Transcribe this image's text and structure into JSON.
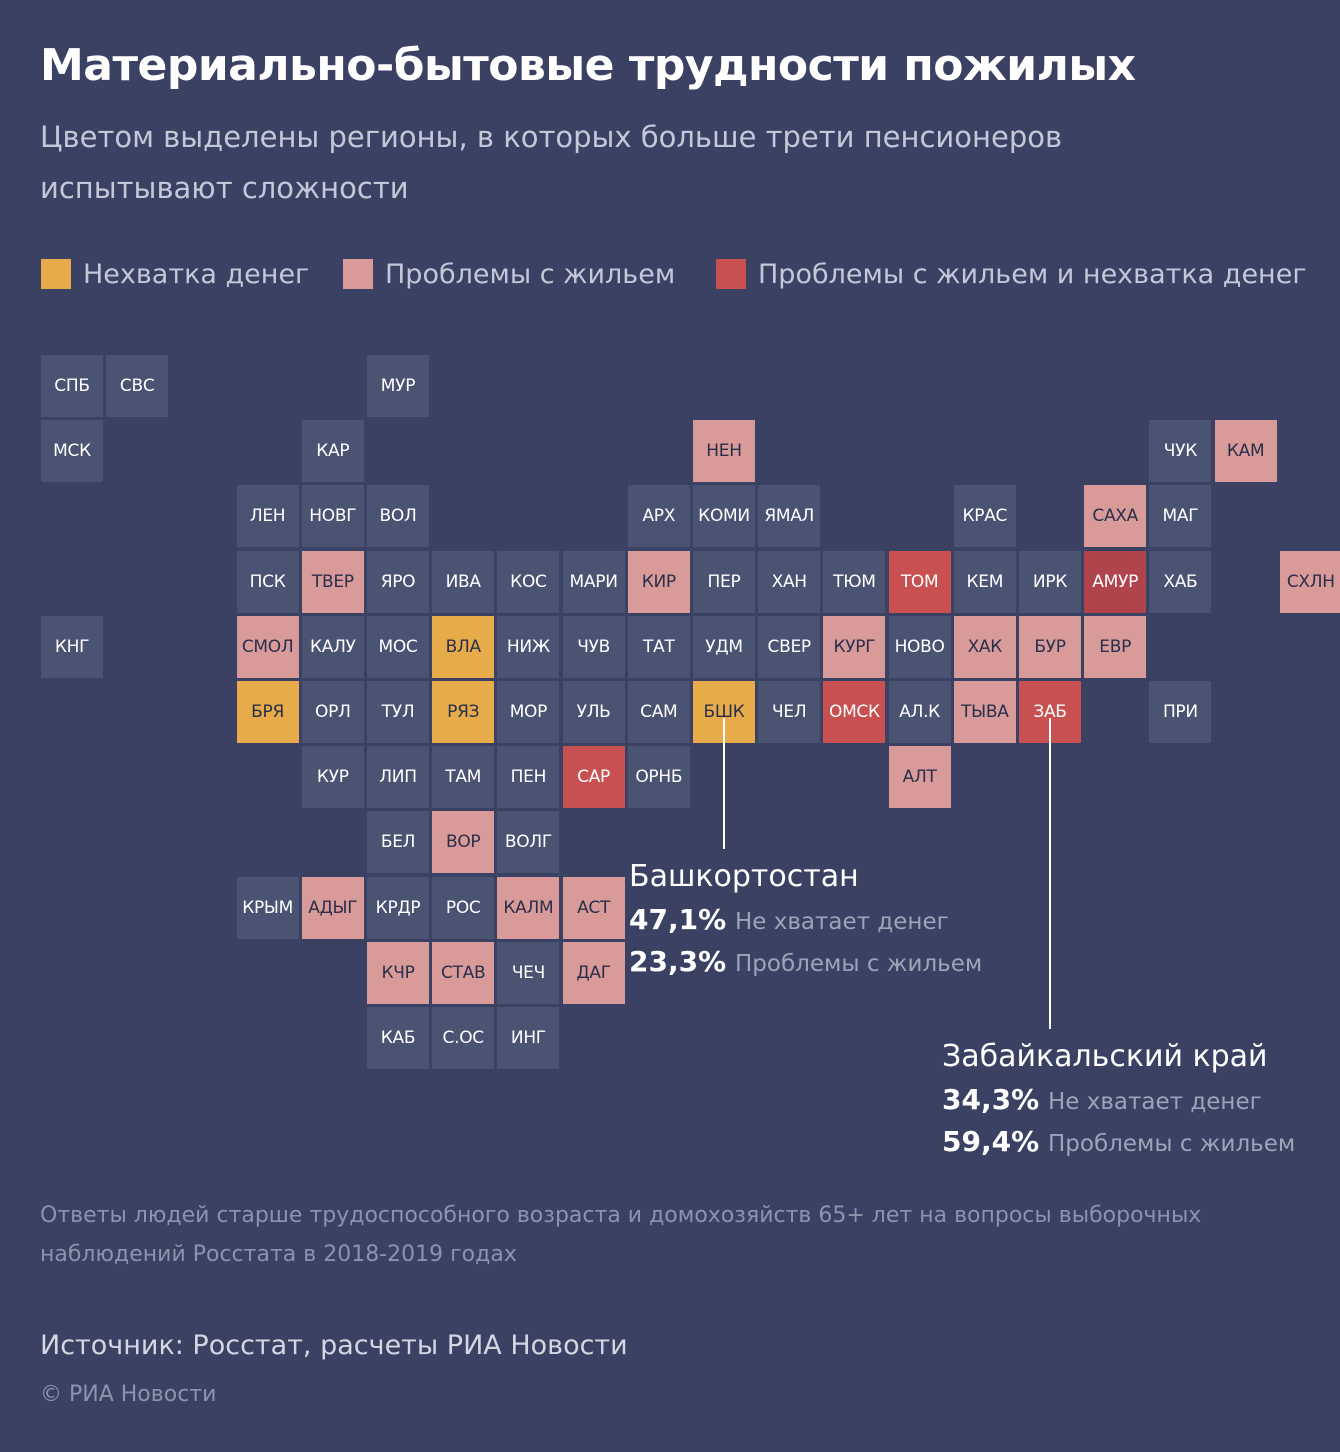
{
  "title": "Материально-бытовые трудности пожилых",
  "subtitle": "Цветом выделены регионы, в которых больше трети пенсионеров испытывают сложности",
  "colors": {
    "background": "#3a4162",
    "default": "#4b5373",
    "money": "#e8ab4a",
    "housing": "#d99a9a",
    "both": "#c85050",
    "both_dark": "#b0444d"
  },
  "legend": [
    {
      "label": "Нехватка денег",
      "category": "money"
    },
    {
      "label": "Проблемы с жильем",
      "category": "housing"
    },
    {
      "label": "Проблемы с жильем и нехватка денег",
      "category": "both"
    }
  ],
  "chart_data": {
    "type": "tile-map",
    "regions": [
      {
        "code": "СПБ",
        "row": 0,
        "col": 0,
        "category": "none"
      },
      {
        "code": "СВС",
        "row": 0,
        "col": 1,
        "category": "none"
      },
      {
        "code": "МУР",
        "row": 0,
        "col": 5,
        "category": "none"
      },
      {
        "code": "МСК",
        "row": 1,
        "col": 0,
        "category": "none"
      },
      {
        "code": "КАР",
        "row": 1,
        "col": 4,
        "category": "none"
      },
      {
        "code": "НЕН",
        "row": 1,
        "col": 10,
        "category": "housing"
      },
      {
        "code": "ЧУК",
        "row": 1,
        "col": 17,
        "category": "none"
      },
      {
        "code": "КАМ",
        "row": 1,
        "col": 18,
        "category": "housing"
      },
      {
        "code": "ЛЕН",
        "row": 2,
        "col": 3,
        "category": "none"
      },
      {
        "code": "НОВГ",
        "row": 2,
        "col": 4,
        "category": "none"
      },
      {
        "code": "ВОЛ",
        "row": 2,
        "col": 5,
        "category": "none"
      },
      {
        "code": "АРХ",
        "row": 2,
        "col": 9,
        "category": "none"
      },
      {
        "code": "КОМИ",
        "row": 2,
        "col": 10,
        "category": "none"
      },
      {
        "code": "ЯМАЛ",
        "row": 2,
        "col": 11,
        "category": "none"
      },
      {
        "code": "КРАС",
        "row": 2,
        "col": 14,
        "category": "none"
      },
      {
        "code": "САХА",
        "row": 2,
        "col": 16,
        "category": "housing"
      },
      {
        "code": "МАГ",
        "row": 2,
        "col": 17,
        "category": "none"
      },
      {
        "code": "ПСК",
        "row": 3,
        "col": 3,
        "category": "none"
      },
      {
        "code": "ТВЕР",
        "row": 3,
        "col": 4,
        "category": "housing"
      },
      {
        "code": "ЯРО",
        "row": 3,
        "col": 5,
        "category": "none"
      },
      {
        "code": "ИВА",
        "row": 3,
        "col": 6,
        "category": "none"
      },
      {
        "code": "КОС",
        "row": 3,
        "col": 7,
        "category": "none"
      },
      {
        "code": "МАРИ",
        "row": 3,
        "col": 8,
        "category": "none"
      },
      {
        "code": "КИР",
        "row": 3,
        "col": 9,
        "category": "housing"
      },
      {
        "code": "ПЕР",
        "row": 3,
        "col": 10,
        "category": "none"
      },
      {
        "code": "ХАН",
        "row": 3,
        "col": 11,
        "category": "none"
      },
      {
        "code": "ТЮМ",
        "row": 3,
        "col": 12,
        "category": "none"
      },
      {
        "code": "ТОМ",
        "row": 3,
        "col": 13,
        "category": "both"
      },
      {
        "code": "КЕМ",
        "row": 3,
        "col": 14,
        "category": "none"
      },
      {
        "code": "ИРК",
        "row": 3,
        "col": 15,
        "category": "none"
      },
      {
        "code": "АМУР",
        "row": 3,
        "col": 16,
        "category": "both_dark"
      },
      {
        "code": "ХАБ",
        "row": 3,
        "col": 17,
        "category": "none"
      },
      {
        "code": "СХЛН",
        "row": 3,
        "col": 19,
        "category": "housing"
      },
      {
        "code": "КНГ",
        "row": 4,
        "col": 0,
        "category": "none"
      },
      {
        "code": "СМОЛ",
        "row": 4,
        "col": 3,
        "category": "housing"
      },
      {
        "code": "КАЛУ",
        "row": 4,
        "col": 4,
        "category": "none"
      },
      {
        "code": "МОС",
        "row": 4,
        "col": 5,
        "category": "none"
      },
      {
        "code": "ВЛА",
        "row": 4,
        "col": 6,
        "category": "money"
      },
      {
        "code": "НИЖ",
        "row": 4,
        "col": 7,
        "category": "none"
      },
      {
        "code": "ЧУВ",
        "row": 4,
        "col": 8,
        "category": "none"
      },
      {
        "code": "ТАТ",
        "row": 4,
        "col": 9,
        "category": "none"
      },
      {
        "code": "УДМ",
        "row": 4,
        "col": 10,
        "category": "none"
      },
      {
        "code": "СВЕР",
        "row": 4,
        "col": 11,
        "category": "none"
      },
      {
        "code": "КУРГ",
        "row": 4,
        "col": 12,
        "category": "housing"
      },
      {
        "code": "НОВО",
        "row": 4,
        "col": 13,
        "category": "none"
      },
      {
        "code": "ХАК",
        "row": 4,
        "col": 14,
        "category": "housing"
      },
      {
        "code": "БУР",
        "row": 4,
        "col": 15,
        "category": "housing"
      },
      {
        "code": "ЕВР",
        "row": 4,
        "col": 16,
        "category": "housing"
      },
      {
        "code": "БРЯ",
        "row": 5,
        "col": 3,
        "category": "money"
      },
      {
        "code": "ОРЛ",
        "row": 5,
        "col": 4,
        "category": "none"
      },
      {
        "code": "ТУЛ",
        "row": 5,
        "col": 5,
        "category": "none"
      },
      {
        "code": "РЯЗ",
        "row": 5,
        "col": 6,
        "category": "money"
      },
      {
        "code": "МОР",
        "row": 5,
        "col": 7,
        "category": "none"
      },
      {
        "code": "УЛЬ",
        "row": 5,
        "col": 8,
        "category": "none"
      },
      {
        "code": "САМ",
        "row": 5,
        "col": 9,
        "category": "none"
      },
      {
        "code": "БШК",
        "row": 5,
        "col": 10,
        "category": "money"
      },
      {
        "code": "ЧЕЛ",
        "row": 5,
        "col": 11,
        "category": "none"
      },
      {
        "code": "ОМСК",
        "row": 5,
        "col": 12,
        "category": "both"
      },
      {
        "code": "АЛ.К",
        "row": 5,
        "col": 13,
        "category": "none"
      },
      {
        "code": "ТЫВА",
        "row": 5,
        "col": 14,
        "category": "housing"
      },
      {
        "code": "ЗАБ",
        "row": 5,
        "col": 15,
        "category": "both"
      },
      {
        "code": "ПРИ",
        "row": 5,
        "col": 17,
        "category": "none"
      },
      {
        "code": "КУР",
        "row": 6,
        "col": 4,
        "category": "none"
      },
      {
        "code": "ЛИП",
        "row": 6,
        "col": 5,
        "category": "none"
      },
      {
        "code": "ТАМ",
        "row": 6,
        "col": 6,
        "category": "none"
      },
      {
        "code": "ПЕН",
        "row": 6,
        "col": 7,
        "category": "none"
      },
      {
        "code": "САР",
        "row": 6,
        "col": 8,
        "category": "both"
      },
      {
        "code": "ОРНБ",
        "row": 6,
        "col": 9,
        "category": "none"
      },
      {
        "code": "АЛТ",
        "row": 6,
        "col": 13,
        "category": "housing"
      },
      {
        "code": "БЕЛ",
        "row": 7,
        "col": 5,
        "category": "none"
      },
      {
        "code": "ВОР",
        "row": 7,
        "col": 6,
        "category": "housing"
      },
      {
        "code": "ВОЛГ",
        "row": 7,
        "col": 7,
        "category": "none"
      },
      {
        "code": "КРЫМ",
        "row": 8,
        "col": 3,
        "category": "none"
      },
      {
        "code": "АДЫГ",
        "row": 8,
        "col": 4,
        "category": "housing"
      },
      {
        "code": "КРДР",
        "row": 8,
        "col": 5,
        "category": "none"
      },
      {
        "code": "РОС",
        "row": 8,
        "col": 6,
        "category": "none"
      },
      {
        "code": "КАЛМ",
        "row": 8,
        "col": 7,
        "category": "housing"
      },
      {
        "code": "АСТ",
        "row": 8,
        "col": 8,
        "category": "housing"
      },
      {
        "code": "КЧР",
        "row": 9,
        "col": 5,
        "category": "housing"
      },
      {
        "code": "СТАВ",
        "row": 9,
        "col": 6,
        "category": "housing"
      },
      {
        "code": "ЧЕЧ",
        "row": 9,
        "col": 7,
        "category": "none"
      },
      {
        "code": "ДАГ",
        "row": 9,
        "col": 8,
        "category": "housing"
      },
      {
        "code": "КАБ",
        "row": 10,
        "col": 5,
        "category": "none"
      },
      {
        "code": "С.ОС",
        "row": 10,
        "col": 6,
        "category": "none"
      },
      {
        "code": "ИНГ",
        "row": 10,
        "col": 7,
        "category": "none"
      }
    ],
    "annotations": [
      {
        "region": "БШК",
        "name": "Башкортостан",
        "rows": [
          {
            "value": "47,1%",
            "label": "Не хватает денег"
          },
          {
            "value": "23,3%",
            "label": "Проблемы с жильем"
          }
        ]
      },
      {
        "region": "ЗАБ",
        "name": "Забайкальский край",
        "rows": [
          {
            "value": "34,3%",
            "label": "Не хватает денег"
          },
          {
            "value": "59,4%",
            "label": "Проблемы с жильем"
          }
        ]
      }
    ]
  },
  "note": "Ответы людей старше трудоспособного возраста и домохозяйств 65+ лет на вопросы выборочных наблюдений Росстата в 2018-2019 годах",
  "source": "Источник: Росстат, расчеты РИА Новости",
  "copyright": "© РИА Новости"
}
